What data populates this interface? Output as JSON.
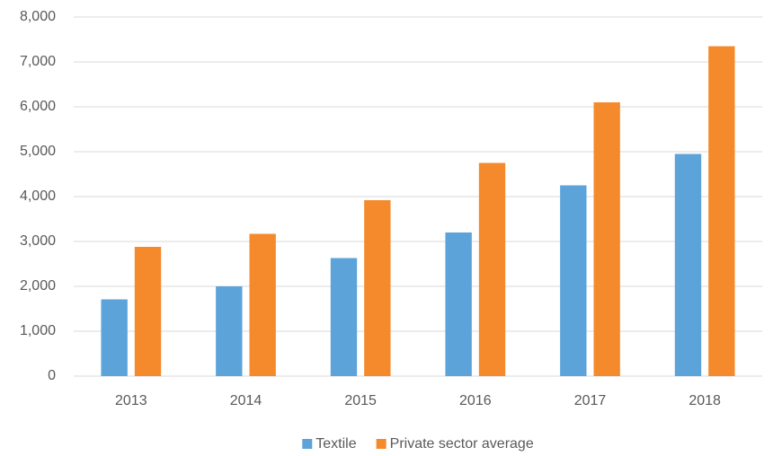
{
  "chart_data": {
    "type": "bar",
    "categories": [
      "2013",
      "2014",
      "2015",
      "2016",
      "2017",
      "2018"
    ],
    "series": [
      {
        "name": "Textile",
        "color": "#5ba3d9",
        "values": [
          1710,
          2000,
          2630,
          3200,
          4250,
          4950
        ]
      },
      {
        "name": "Private sector average",
        "color": "#f58a2c",
        "values": [
          2880,
          3170,
          3920,
          4750,
          6100,
          7350
        ]
      }
    ],
    "ylim": [
      0,
      8000
    ],
    "yticks": [
      0,
      {
        "value": 1000,
        "label": "1,000"
      },
      {
        "value": 2000,
        "label": "2,000"
      },
      {
        "value": 3000,
        "label": "3,000"
      },
      {
        "value": 4000,
        "label": "4,000"
      },
      {
        "value": 5000,
        "label": "5,000"
      },
      {
        "value": 6000,
        "label": "6,000"
      },
      {
        "value": 7000,
        "label": "7,000"
      },
      {
        "value": 8000,
        "label": "8,000"
      }
    ],
    "grid": true,
    "legend": "bottom"
  }
}
